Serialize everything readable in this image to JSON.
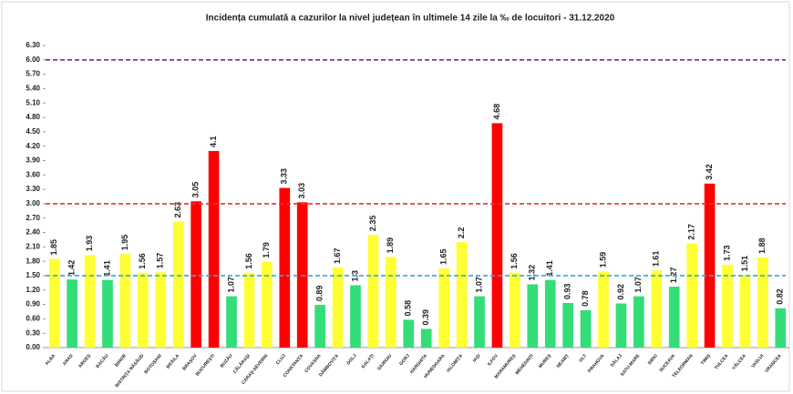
{
  "chart_data": {
    "type": "bar",
    "title": "Incidența cumulată a cazurilor la nivel județean în ultimele 14 zile la ‰ de locuitori - 31.12.2020",
    "categories": [
      "ALBA",
      "ARAD",
      "ARGEȘ",
      "BACĂU",
      "BIHOR",
      "BISTRIȚA NĂSĂUD",
      "BOTOȘANI",
      "BRĂILA",
      "BRAȘOV",
      "BUCUREȘTI",
      "BUZĂU",
      "CĂLĂRAȘI",
      "CARAȘ-SEVERIN",
      "CLUJ",
      "CONSTANȚA",
      "COVASNA",
      "DÂMBOVIȚA",
      "DOLJ",
      "GALAȚI",
      "GIURGIU",
      "GORJ",
      "HARGHITA",
      "HUNEDOARA",
      "IALOMIȚA",
      "IAȘI",
      "ILFOV",
      "MARAMUREȘ",
      "MEHEDINȚI",
      "MUREȘ",
      "NEAMȚ",
      "OLT",
      "PRAHOVA",
      "SĂLAJ",
      "SATU-MARE",
      "SIBIU",
      "SUCEAVA",
      "TELEORMAN",
      "TIMIȘ",
      "TULCEA",
      "VÂLCEA",
      "VASLUI",
      "VRANCEA"
    ],
    "values": [
      1.85,
      1.42,
      1.93,
      1.41,
      1.95,
      1.56,
      1.57,
      2.63,
      3.05,
      4.1,
      1.07,
      1.56,
      1.79,
      3.33,
      3.03,
      0.89,
      1.67,
      1.3,
      2.35,
      1.89,
      0.58,
      0.39,
      1.65,
      2.2,
      1.07,
      4.68,
      1.56,
      1.32,
      1.41,
      0.93,
      0.78,
      1.59,
      0.92,
      1.07,
      1.61,
      1.27,
      2.17,
      3.42,
      1.73,
      1.51,
      1.88,
      0.82
    ],
    "colors": [
      "#ffff33",
      "#33dd77",
      "#ffff33",
      "#33dd77",
      "#ffff33",
      "#ffff33",
      "#ffff33",
      "#ffff33",
      "#ff0000",
      "#ff0000",
      "#33dd77",
      "#ffff33",
      "#ffff33",
      "#ff0000",
      "#ff0000",
      "#33dd77",
      "#ffff33",
      "#33dd77",
      "#ffff33",
      "#ffff33",
      "#33dd77",
      "#33dd77",
      "#ffff33",
      "#ffff33",
      "#33dd77",
      "#ff0000",
      "#ffff33",
      "#33dd77",
      "#33dd77",
      "#33dd77",
      "#33dd77",
      "#ffff33",
      "#33dd77",
      "#33dd77",
      "#ffff33",
      "#33dd77",
      "#ffff33",
      "#ff0000",
      "#ffff33",
      "#ffff33",
      "#ffff33",
      "#33dd77"
    ],
    "ylim": [
      0,
      6.3
    ],
    "yticks": [
      {
        "value": 0,
        "label": "0.00"
      },
      {
        "value": 0.3,
        "label": "0.30"
      },
      {
        "value": 0.6,
        "label": "0.60"
      },
      {
        "value": 0.9,
        "label": "0.90"
      },
      {
        "value": 1.2,
        "label": "1.20"
      },
      {
        "value": 1.5,
        "label": "1.50"
      },
      {
        "value": 1.8,
        "label": "1.80"
      },
      {
        "value": 2.1,
        "label": "2.10"
      },
      {
        "value": 2.4,
        "label": "2.40"
      },
      {
        "value": 2.7,
        "label": "2.70"
      },
      {
        "value": 3.0,
        "label": "3.00"
      },
      {
        "value": 3.3,
        "label": "3.30"
      },
      {
        "value": 3.6,
        "label": "3.60"
      },
      {
        "value": 3.9,
        "label": "3.90"
      },
      {
        "value": 4.2,
        "label": "4.20"
      },
      {
        "value": 4.5,
        "label": "4.50"
      },
      {
        "value": 4.8,
        "label": "4.80"
      },
      {
        "value": 5.1,
        "label": "5.10"
      },
      {
        "value": 5.4,
        "label": "5.40"
      },
      {
        "value": 5.7,
        "label": "5.70"
      },
      {
        "value": 6.0,
        "label": "6.00"
      },
      {
        "value": 6.3,
        "label": "6.30"
      }
    ],
    "reference_lines": [
      {
        "value": 6.0,
        "color": "#7030a0"
      },
      {
        "value": 3.0,
        "color": "#e83030"
      },
      {
        "value": 1.5,
        "color": "#2eaadc"
      }
    ]
  }
}
